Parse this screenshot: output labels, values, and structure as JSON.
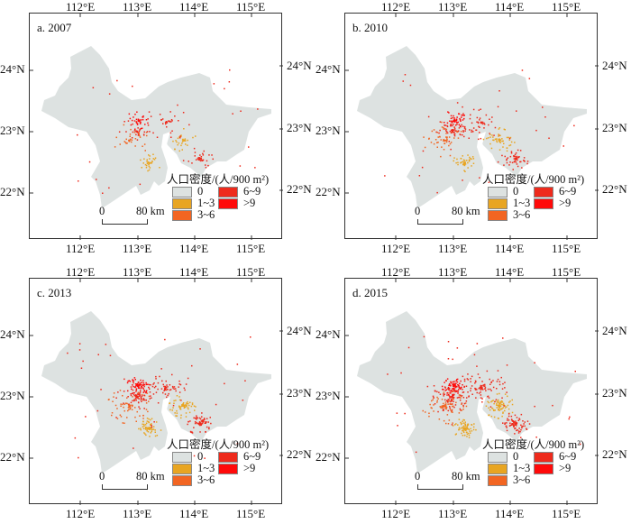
{
  "panels": [
    {
      "label": "a. 2007"
    },
    {
      "label": "b. 2010"
    },
    {
      "label": "c. 2013"
    },
    {
      "label": "d. 2015"
    }
  ],
  "axes": {
    "lon_ticks": [
      "112°E",
      "113°E",
      "114°E",
      "115°E"
    ],
    "lat_ticks": [
      "24°N",
      "23°N",
      "22°N"
    ]
  },
  "legend": {
    "title": "人口密度/(人/900 m²)",
    "items": [
      {
        "label": "0",
        "color": "#dde2e1"
      },
      {
        "label": "1~3",
        "color": "#e8a522"
      },
      {
        "label": "3~6",
        "color": "#f26522"
      },
      {
        "label": "6~9",
        "color": "#ee2a1c"
      },
      {
        "label": ">9",
        "color": "#ff0a0a"
      }
    ]
  },
  "scale_bar": {
    "start": "0",
    "end": "80 km"
  }
}
